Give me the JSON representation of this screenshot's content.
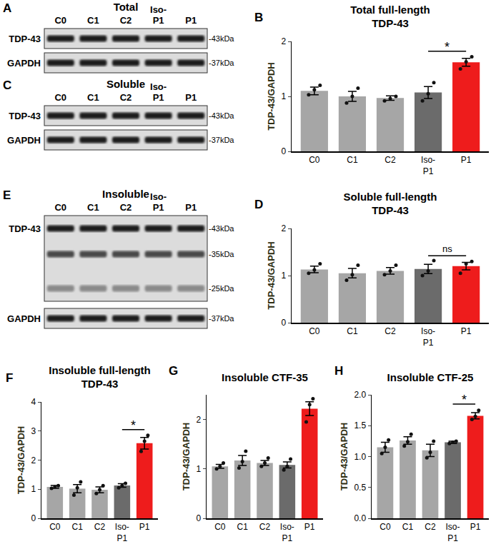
{
  "chart_data": [
    {
      "type": "bar",
      "panel": "B",
      "title": "Total full-length\nTDP-43",
      "y_label": "TDP-43/GAPDH",
      "categories": [
        "C0",
        "C1",
        "C2",
        "Iso-P1",
        "P1"
      ],
      "values": [
        1.1,
        1.0,
        0.97,
        1.07,
        1.62
      ],
      "errors": [
        0.07,
        0.09,
        0.04,
        0.11,
        0.07
      ],
      "points": [
        [
          1.03,
          1.12,
          1.2
        ],
        [
          0.88,
          1.0,
          1.15
        ],
        [
          0.92,
          0.96,
          1.0
        ],
        [
          0.92,
          1.05,
          1.25
        ],
        [
          1.5,
          1.63,
          1.72
        ]
      ],
      "colors": [
        "#a6a6a6",
        "#a6a6a6",
        "#a6a6a6",
        "#6b6b6b",
        "#ee1c1c"
      ],
      "ylim": [
        0,
        2
      ],
      "yticks": [
        0,
        1,
        2
      ],
      "grid": false,
      "annotations": [
        {
          "text": "*",
          "between": [
            "Iso-P1",
            "P1"
          ]
        }
      ]
    },
    {
      "type": "bar",
      "panel": "D",
      "title": "Soluble full-length\nTDP-43",
      "y_label": "TDP-43/GAPDH",
      "categories": [
        "C0",
        "C1",
        "C2",
        "Iso-P1",
        "P1"
      ],
      "values": [
        1.13,
        1.05,
        1.1,
        1.14,
        1.2
      ],
      "errors": [
        0.07,
        0.1,
        0.07,
        0.1,
        0.08
      ],
      "points": [
        [
          1.05,
          1.12,
          1.25
        ],
        [
          0.9,
          1.02,
          1.22
        ],
        [
          1.02,
          1.1,
          1.22
        ],
        [
          1.0,
          1.1,
          1.32
        ],
        [
          1.05,
          1.25,
          1.3
        ]
      ],
      "colors": [
        "#a6a6a6",
        "#a6a6a6",
        "#a6a6a6",
        "#6b6b6b",
        "#ee1c1c"
      ],
      "ylim": [
        0,
        2
      ],
      "yticks": [
        0,
        1,
        2
      ],
      "grid": false,
      "annotations": [
        {
          "text": "ns",
          "between": [
            "Iso-P1",
            "P1"
          ]
        }
      ]
    },
    {
      "type": "bar",
      "panel": "F",
      "title": "Insoluble full-length\nTDP-43",
      "y_label": "TDP-43/GAPDH",
      "categories": [
        "C0",
        "C1",
        "C2",
        "Iso-P1",
        "P1"
      ],
      "values": [
        1.08,
        1.02,
        0.98,
        1.13,
        2.58
      ],
      "errors": [
        0.05,
        0.14,
        0.1,
        0.06,
        0.2
      ],
      "points": [
        [
          1.03,
          1.08,
          1.12
        ],
        [
          0.8,
          1.05,
          1.25
        ],
        [
          0.85,
          0.98,
          1.12
        ],
        [
          1.05,
          1.12,
          1.2
        ],
        [
          2.3,
          2.65,
          2.85
        ]
      ],
      "colors": [
        "#a6a6a6",
        "#a6a6a6",
        "#a6a6a6",
        "#6b6b6b",
        "#ee1c1c"
      ],
      "ylim": [
        0,
        4
      ],
      "yticks": [
        0,
        1,
        2,
        3,
        4
      ],
      "grid": false,
      "annotations": [
        {
          "text": "*",
          "between": [
            "Iso-P1",
            "P1"
          ]
        }
      ]
    },
    {
      "type": "bar",
      "panel": "G",
      "title": "Insoluble CTF-35",
      "y_label": "TDP-43/GAPDH",
      "categories": [
        "C0",
        "C1",
        "C2",
        "Iso-P1",
        "P1"
      ],
      "values": [
        1.05,
        1.17,
        1.12,
        1.08,
        2.22
      ],
      "errors": [
        0.04,
        0.1,
        0.05,
        0.06,
        0.14
      ],
      "points": [
        [
          1.0,
          1.05,
          1.12
        ],
        [
          1.02,
          1.15,
          1.36
        ],
        [
          1.05,
          1.12,
          1.22
        ],
        [
          0.98,
          1.05,
          1.2
        ],
        [
          1.95,
          2.3,
          2.42
        ]
      ],
      "colors": [
        "#a6a6a6",
        "#a6a6a6",
        "#a6a6a6",
        "#6b6b6b",
        "#ee1c1c"
      ],
      "ylim": [
        0,
        2.5
      ],
      "yticks": [
        0,
        1,
        2
      ],
      "grid": false,
      "annotations": [
        {
          "text": "*",
          "between": [
            "Iso-P1",
            "P1"
          ]
        }
      ]
    },
    {
      "type": "bar",
      "panel": "H",
      "title": "Insoluble CTF-25",
      "y_label": "TDP-43/GAPDH",
      "categories": [
        "C0",
        "C1",
        "C2",
        "Iso-P1",
        "P1"
      ],
      "values": [
        1.15,
        1.26,
        1.1,
        1.23,
        1.66
      ],
      "errors": [
        0.08,
        0.06,
        0.1,
        0.02,
        0.05
      ],
      "points": [
        [
          1.05,
          1.15,
          1.27
        ],
        [
          1.17,
          1.24,
          1.36
        ],
        [
          0.98,
          1.07,
          1.25
        ],
        [
          1.21,
          1.23,
          1.25
        ],
        [
          1.6,
          1.65,
          1.75
        ]
      ],
      "colors": [
        "#a6a6a6",
        "#a6a6a6",
        "#a6a6a6",
        "#6b6b6b",
        "#ee1c1c"
      ],
      "ylim": [
        0,
        2
      ],
      "yticks": [
        {
          "value": 0,
          "label": "0.0"
        },
        {
          "value": 0.5,
          "label": "0.5"
        },
        {
          "value": 1,
          "label": "1.0"
        },
        {
          "value": 1.5,
          "label": "1.5"
        },
        {
          "value": 2,
          "label": "2.0"
        }
      ],
      "grid": false,
      "annotations": [
        {
          "text": "*",
          "between": [
            "Iso-P1",
            "P1"
          ]
        }
      ]
    }
  ],
  "blots": [
    {
      "panel": "A",
      "title": "Total",
      "lanes": [
        "C0",
        "C1",
        "C2",
        "Iso-P1",
        "P1"
      ],
      "rows": [
        {
          "label": "TDP-43",
          "bands": [
            "-43kDa"
          ]
        },
        {
          "label": "GAPDH",
          "bands": [
            "-37kDa"
          ]
        }
      ]
    },
    {
      "panel": "C",
      "title": "Soluble",
      "lanes": [
        "C0",
        "C1",
        "C2",
        "Iso-P1",
        "P1"
      ],
      "rows": [
        {
          "label": "TDP-43",
          "bands": [
            "-43kDa"
          ]
        },
        {
          "label": "GAPDH",
          "bands": [
            "-37kDa"
          ]
        }
      ]
    },
    {
      "panel": "E",
      "title": "Insoluble",
      "lanes": [
        "C0",
        "C1",
        "C2",
        "Iso-P1",
        "P1"
      ],
      "rows": [
        {
          "label": "TDP-43",
          "bands": [
            "-43kDa",
            "-35kDa",
            "-25kDa"
          ]
        },
        {
          "label": "GAPDH",
          "bands": [
            "-37kDa"
          ]
        }
      ]
    }
  ]
}
